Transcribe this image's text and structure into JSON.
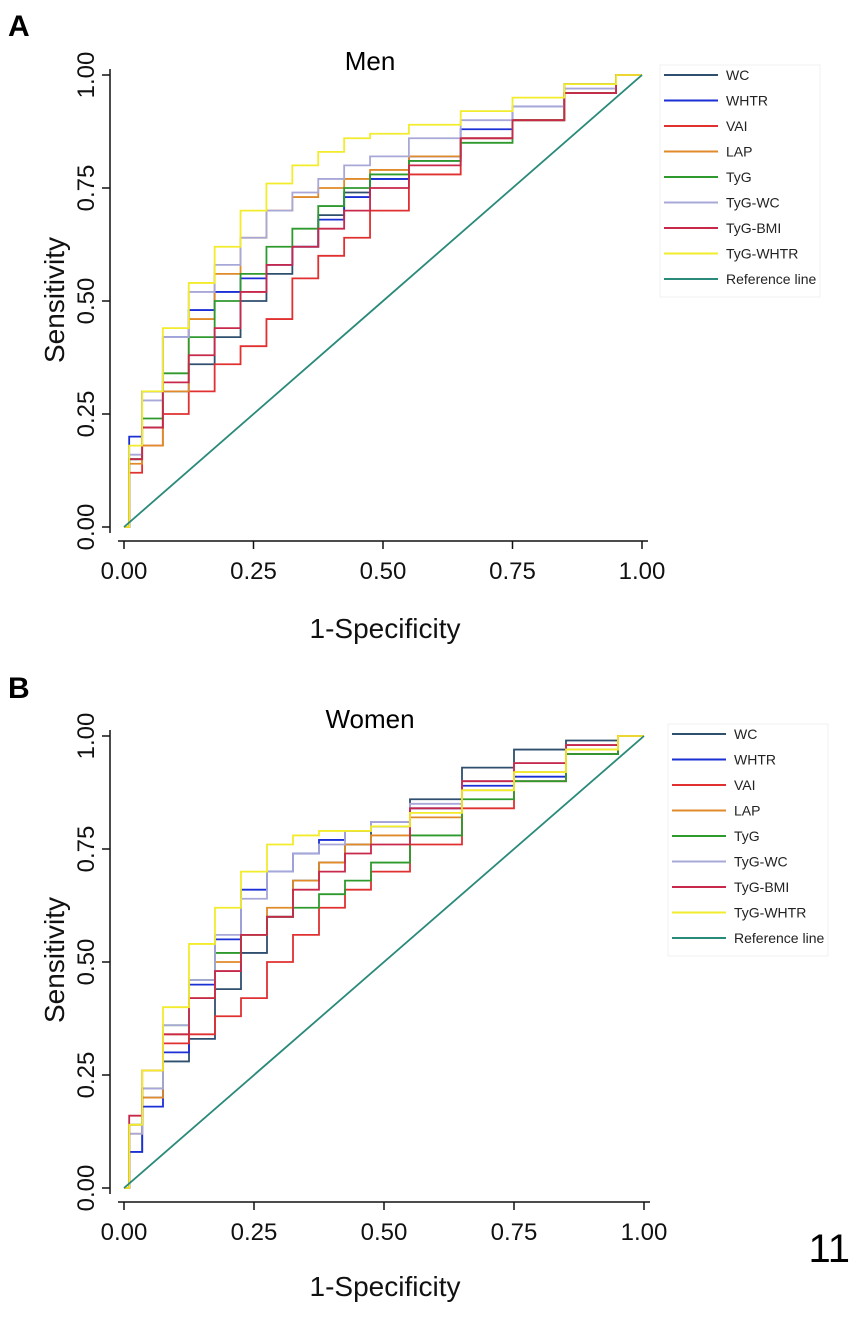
{
  "page_number": "11",
  "chart_data": [
    {
      "type": "line",
      "panel_label": "A",
      "title": "Men",
      "xlabel": "1-Specificity",
      "ylabel": "Sensitivity",
      "xlim": [
        0,
        1
      ],
      "ylim": [
        0,
        1
      ],
      "xticks": [
        "0.00",
        "0.25",
        "0.50",
        "0.75",
        "1.00"
      ],
      "yticks": [
        "0.00",
        "0.25",
        "0.50",
        "0.75",
        "1.00"
      ],
      "legend_position": "right",
      "series": [
        {
          "name": "WC",
          "color": "#2f4f6f",
          "x": [
            0,
            0.02,
            0.05,
            0.1,
            0.15,
            0.2,
            0.25,
            0.3,
            0.35,
            0.4,
            0.45,
            0.5,
            0.6,
            0.7,
            0.8,
            0.9,
            1
          ],
          "y": [
            0,
            0.15,
            0.22,
            0.3,
            0.36,
            0.42,
            0.5,
            0.56,
            0.62,
            0.69,
            0.74,
            0.77,
            0.81,
            0.86,
            0.9,
            0.96,
            1
          ]
        },
        {
          "name": "WHTR",
          "color": "#1a2fd6",
          "x": [
            0,
            0.02,
            0.05,
            0.1,
            0.15,
            0.2,
            0.25,
            0.3,
            0.35,
            0.4,
            0.45,
            0.5,
            0.6,
            0.7,
            0.8,
            0.9,
            1
          ],
          "y": [
            0,
            0.2,
            0.3,
            0.42,
            0.48,
            0.52,
            0.55,
            0.58,
            0.62,
            0.68,
            0.73,
            0.77,
            0.82,
            0.88,
            0.93,
            0.98,
            1
          ]
        },
        {
          "name": "VAI",
          "color": "#e03030",
          "x": [
            0,
            0.02,
            0.05,
            0.1,
            0.15,
            0.2,
            0.25,
            0.3,
            0.35,
            0.4,
            0.45,
            0.5,
            0.6,
            0.7,
            0.8,
            0.9,
            1
          ],
          "y": [
            0,
            0.12,
            0.18,
            0.25,
            0.3,
            0.36,
            0.4,
            0.46,
            0.55,
            0.6,
            0.64,
            0.7,
            0.78,
            0.86,
            0.9,
            0.96,
            1
          ]
        },
        {
          "name": "LAP",
          "color": "#e08a2a",
          "x": [
            0,
            0.02,
            0.05,
            0.1,
            0.15,
            0.2,
            0.25,
            0.3,
            0.35,
            0.4,
            0.45,
            0.5,
            0.6,
            0.7,
            0.8,
            0.9,
            1
          ],
          "y": [
            0,
            0.14,
            0.18,
            0.3,
            0.46,
            0.56,
            0.64,
            0.7,
            0.73,
            0.75,
            0.77,
            0.79,
            0.82,
            0.86,
            0.9,
            0.96,
            1
          ]
        },
        {
          "name": "TyG",
          "color": "#2e9a2e",
          "x": [
            0,
            0.02,
            0.05,
            0.1,
            0.15,
            0.2,
            0.25,
            0.3,
            0.35,
            0.4,
            0.45,
            0.5,
            0.6,
            0.7,
            0.8,
            0.9,
            1
          ],
          "y": [
            0,
            0.15,
            0.24,
            0.34,
            0.42,
            0.5,
            0.56,
            0.62,
            0.66,
            0.71,
            0.75,
            0.78,
            0.81,
            0.85,
            0.9,
            0.96,
            1
          ]
        },
        {
          "name": "TyG-WC",
          "color": "#a8a8d8",
          "x": [
            0,
            0.02,
            0.05,
            0.1,
            0.15,
            0.2,
            0.25,
            0.3,
            0.35,
            0.4,
            0.45,
            0.5,
            0.6,
            0.7,
            0.8,
            0.9,
            1
          ],
          "y": [
            0,
            0.16,
            0.28,
            0.42,
            0.52,
            0.58,
            0.64,
            0.7,
            0.74,
            0.77,
            0.8,
            0.82,
            0.86,
            0.9,
            0.93,
            0.97,
            1
          ]
        },
        {
          "name": "TyG-BMI",
          "color": "#c8284a",
          "x": [
            0,
            0.02,
            0.05,
            0.1,
            0.15,
            0.2,
            0.25,
            0.3,
            0.35,
            0.4,
            0.45,
            0.5,
            0.6,
            0.7,
            0.8,
            0.9,
            1
          ],
          "y": [
            0,
            0.15,
            0.22,
            0.32,
            0.38,
            0.44,
            0.52,
            0.58,
            0.62,
            0.66,
            0.7,
            0.75,
            0.8,
            0.86,
            0.9,
            0.96,
            1
          ]
        },
        {
          "name": "TyG-WHTR",
          "color": "#f2ec2a",
          "x": [
            0,
            0.02,
            0.05,
            0.1,
            0.15,
            0.2,
            0.25,
            0.3,
            0.35,
            0.4,
            0.45,
            0.5,
            0.6,
            0.7,
            0.8,
            0.9,
            1
          ],
          "y": [
            0,
            0.18,
            0.3,
            0.44,
            0.54,
            0.62,
            0.7,
            0.76,
            0.8,
            0.83,
            0.86,
            0.87,
            0.89,
            0.92,
            0.95,
            0.98,
            1
          ]
        },
        {
          "name": "Reference line",
          "color": "#2a8a7a",
          "x": [
            0,
            1
          ],
          "y": [
            0,
            1
          ]
        }
      ]
    },
    {
      "type": "line",
      "panel_label": "B",
      "title": "Women",
      "xlabel": "1-Specificity",
      "ylabel": "Sensitivity",
      "xlim": [
        0,
        1
      ],
      "ylim": [
        0,
        1
      ],
      "xticks": [
        "0.00",
        "0.25",
        "0.50",
        "0.75",
        "1.00"
      ],
      "yticks": [
        "0.00",
        "0.25",
        "0.50",
        "0.75",
        "1.00"
      ],
      "legend_position": "right",
      "series": [
        {
          "name": "WC",
          "color": "#2f4f6f",
          "x": [
            0,
            0.02,
            0.05,
            0.1,
            0.15,
            0.2,
            0.25,
            0.3,
            0.35,
            0.4,
            0.45,
            0.5,
            0.6,
            0.7,
            0.8,
            0.9,
            1
          ],
          "y": [
            0,
            0.08,
            0.2,
            0.28,
            0.33,
            0.44,
            0.52,
            0.6,
            0.68,
            0.72,
            0.76,
            0.8,
            0.86,
            0.93,
            0.97,
            0.99,
            1
          ]
        },
        {
          "name": "WHTR",
          "color": "#1a2fd6",
          "x": [
            0,
            0.02,
            0.05,
            0.1,
            0.15,
            0.2,
            0.25,
            0.3,
            0.35,
            0.4,
            0.45,
            0.5,
            0.6,
            0.7,
            0.8,
            0.9,
            1
          ],
          "y": [
            0,
            0.08,
            0.18,
            0.3,
            0.45,
            0.55,
            0.66,
            0.7,
            0.74,
            0.77,
            0.79,
            0.81,
            0.84,
            0.89,
            0.91,
            0.96,
            1
          ]
        },
        {
          "name": "VAI",
          "color": "#e03030",
          "x": [
            0,
            0.02,
            0.05,
            0.1,
            0.15,
            0.2,
            0.25,
            0.3,
            0.35,
            0.4,
            0.45,
            0.5,
            0.6,
            0.7,
            0.8,
            0.9,
            1
          ],
          "y": [
            0,
            0.14,
            0.22,
            0.32,
            0.34,
            0.38,
            0.42,
            0.5,
            0.56,
            0.62,
            0.66,
            0.7,
            0.76,
            0.84,
            0.9,
            0.96,
            1
          ]
        },
        {
          "name": "LAP",
          "color": "#e08a2a",
          "x": [
            0,
            0.02,
            0.05,
            0.1,
            0.15,
            0.2,
            0.25,
            0.3,
            0.35,
            0.4,
            0.45,
            0.5,
            0.6,
            0.7,
            0.8,
            0.9,
            1
          ],
          "y": [
            0,
            0.12,
            0.2,
            0.34,
            0.42,
            0.5,
            0.56,
            0.62,
            0.68,
            0.72,
            0.76,
            0.78,
            0.82,
            0.88,
            0.92,
            0.97,
            1
          ]
        },
        {
          "name": "TyG",
          "color": "#2e9a2e",
          "x": [
            0,
            0.02,
            0.05,
            0.1,
            0.15,
            0.2,
            0.25,
            0.3,
            0.35,
            0.4,
            0.45,
            0.5,
            0.6,
            0.7,
            0.8,
            0.9,
            1
          ],
          "y": [
            0,
            0.14,
            0.22,
            0.36,
            0.46,
            0.52,
            0.56,
            0.6,
            0.62,
            0.65,
            0.68,
            0.72,
            0.78,
            0.86,
            0.9,
            0.96,
            1
          ]
        },
        {
          "name": "TyG-WC",
          "color": "#a8a8d8",
          "x": [
            0,
            0.02,
            0.05,
            0.1,
            0.15,
            0.2,
            0.25,
            0.3,
            0.35,
            0.4,
            0.45,
            0.5,
            0.6,
            0.7,
            0.8,
            0.9,
            1
          ],
          "y": [
            0,
            0.12,
            0.22,
            0.36,
            0.46,
            0.56,
            0.64,
            0.7,
            0.74,
            0.76,
            0.79,
            0.81,
            0.85,
            0.9,
            0.94,
            0.98,
            1
          ]
        },
        {
          "name": "TyG-BMI",
          "color": "#c8284a",
          "x": [
            0,
            0.02,
            0.05,
            0.1,
            0.15,
            0.2,
            0.25,
            0.3,
            0.35,
            0.4,
            0.45,
            0.5,
            0.6,
            0.7,
            0.8,
            0.9,
            1
          ],
          "y": [
            0,
            0.16,
            0.26,
            0.34,
            0.42,
            0.48,
            0.56,
            0.6,
            0.66,
            0.7,
            0.74,
            0.76,
            0.84,
            0.9,
            0.94,
            0.98,
            1
          ]
        },
        {
          "name": "TyG-WHTR",
          "color": "#f2ec2a",
          "x": [
            0,
            0.02,
            0.05,
            0.1,
            0.15,
            0.2,
            0.25,
            0.3,
            0.35,
            0.4,
            0.45,
            0.5,
            0.6,
            0.7,
            0.8,
            0.9,
            1
          ],
          "y": [
            0,
            0.14,
            0.26,
            0.4,
            0.54,
            0.62,
            0.7,
            0.76,
            0.78,
            0.79,
            0.79,
            0.8,
            0.83,
            0.88,
            0.92,
            0.97,
            1
          ]
        },
        {
          "name": "Reference line",
          "color": "#2a8a7a",
          "x": [
            0,
            1
          ],
          "y": [
            0,
            1
          ]
        }
      ]
    }
  ]
}
